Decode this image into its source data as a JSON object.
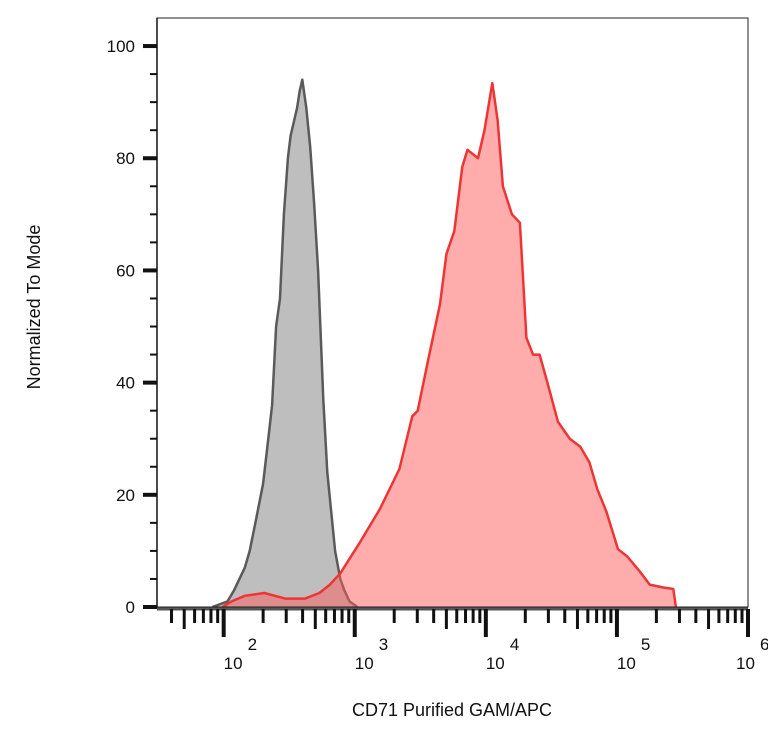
{
  "chart_data": {
    "type": "area",
    "title": "",
    "xlabel": "CD71 Purified GAM/APC",
    "ylabel": "Normalized To Mode",
    "xscale": "log",
    "xlim": [
      31,
      1000000
    ],
    "ylim": [
      0,
      105
    ],
    "grid": false,
    "legend": "none",
    "x_ticks": [
      {
        "value": 100,
        "base": "10",
        "exp": "2"
      },
      {
        "value": 1000,
        "base": "10",
        "exp": "3"
      },
      {
        "value": 10000,
        "base": "10",
        "exp": "4"
      },
      {
        "value": 100000,
        "base": "10",
        "exp": "5"
      },
      {
        "value": 1000000,
        "base": "10",
        "exp": "6"
      }
    ],
    "y_ticks": [
      {
        "value": 0,
        "label": "0"
      },
      {
        "value": 20,
        "label": "20"
      },
      {
        "value": 40,
        "label": "40"
      },
      {
        "value": 60,
        "label": "60"
      },
      {
        "value": 80,
        "label": "80"
      },
      {
        "value": 100,
        "label": "100"
      }
    ],
    "series": [
      {
        "color": "#5a5a5a",
        "fill": "#bebebe",
        "x": [
          82,
          107,
          120,
          145,
          158,
          178,
          200,
          219,
          234,
          251,
          269,
          288,
          309,
          324,
          339,
          363,
          380,
          398,
          427,
          457,
          490,
          525,
          575,
          617,
          661,
          708,
          776,
          832,
          912,
          1047
        ],
        "y": [
          0,
          1,
          3,
          7,
          10,
          16,
          22,
          30,
          36,
          50,
          55,
          70,
          80,
          84,
          86,
          89,
          92,
          94,
          89,
          82,
          72,
          60,
          37,
          24,
          17,
          10,
          5,
          3,
          1,
          0
        ]
      },
      {
        "color": "#ee3535",
        "fill": "#ff5a5a",
        "x": [
          98,
          115,
          145,
          204,
          295,
          417,
          537,
          646,
          776,
          1100,
          1550,
          2190,
          2750,
          3020,
          3630,
          4470,
          5010,
          5750,
          6610,
          7240,
          8710,
          9770,
          11200,
          12300,
          13500,
          15800,
          18200,
          20400,
          22900,
          25700,
          29500,
          35500,
          43700,
          52500,
          61700,
          70800,
          83200,
          102000,
          120000,
          151000,
          178000,
          224000,
          269000,
          282000
        ],
        "y": [
          0,
          1,
          2,
          2.5,
          1.5,
          1.5,
          2.5,
          4,
          6,
          11.6,
          17.4,
          24.6,
          34,
          35,
          44,
          54,
          63,
          67,
          78.5,
          81.5,
          80,
          85,
          93.4,
          86.8,
          75,
          70,
          68.5,
          48,
          45,
          45,
          40,
          33,
          30,
          28.6,
          25.8,
          21,
          17,
          10.3,
          9,
          6.2,
          4,
          3.5,
          3.2,
          0
        ]
      }
    ]
  }
}
